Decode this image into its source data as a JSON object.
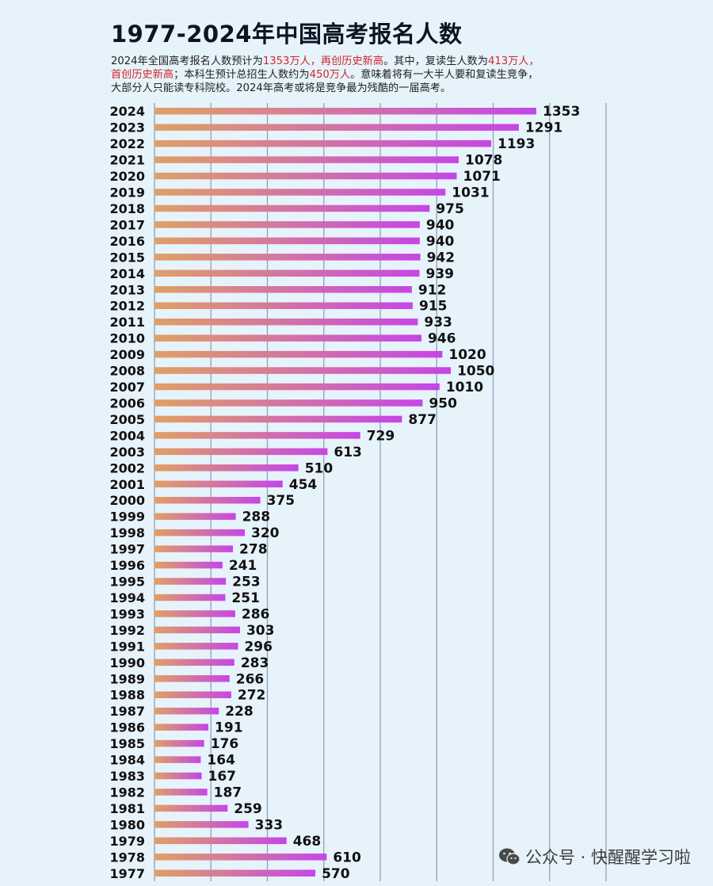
{
  "title": "1977-2024年中国高考报名人数",
  "subtitle": {
    "line1": [
      {
        "text": "2024年全国高考报名人数预计为",
        "hl": false
      },
      {
        "text": "1353万人，再创历史新高",
        "hl": true
      },
      {
        "text": "。其中，复读生人数为",
        "hl": false
      },
      {
        "text": "413万人，",
        "hl": true
      }
    ],
    "line2": [
      {
        "text": "首创历史新高",
        "hl": true
      },
      {
        "text": "；本科生预计总招生人数约为",
        "hl": false
      },
      {
        "text": "450万人",
        "hl": true
      },
      {
        "text": "。意味着将有一大半人要和复读生竞争，",
        "hl": false
      }
    ],
    "line3": [
      {
        "text": "大部分人只能读专科院校。2024年高考或将是竞争最为残酷的一届高考。",
        "hl": false
      }
    ]
  },
  "watermark": {
    "icon": "wechat-icon",
    "text": "公众号 · 快醒醒学习啦"
  },
  "colors": {
    "background": "#e6f3fb",
    "bar_start": "#e0a064",
    "bar_end": "#c646e6",
    "gridline": "#8ea2b6",
    "highlight": "#d3262b"
  },
  "chart_data": {
    "type": "bar",
    "orientation": "horizontal",
    "categories": [
      "2024",
      "2023",
      "2022",
      "2021",
      "2020",
      "2019",
      "2018",
      "2017",
      "2016",
      "2015",
      "2014",
      "2013",
      "2012",
      "2011",
      "2010",
      "2009",
      "2008",
      "2007",
      "2006",
      "2005",
      "2004",
      "2003",
      "2002",
      "2001",
      "2000",
      "1999",
      "1998",
      "1997",
      "1996",
      "1995",
      "1994",
      "1993",
      "1992",
      "1991",
      "1990",
      "1989",
      "1988",
      "1987",
      "1986",
      "1985",
      "1984",
      "1983",
      "1982",
      "1981",
      "1980",
      "1979",
      "1978",
      "1977"
    ],
    "values": [
      1353,
      1291,
      1193,
      1078,
      1071,
      1031,
      975,
      940,
      940,
      942,
      939,
      912,
      915,
      933,
      946,
      1020,
      1050,
      1010,
      950,
      877,
      729,
      613,
      510,
      454,
      375,
      288,
      320,
      278,
      241,
      253,
      251,
      286,
      303,
      296,
      283,
      266,
      272,
      228,
      191,
      176,
      164,
      167,
      187,
      259,
      333,
      468,
      610,
      570
    ],
    "title": "1977-2024年中国高考报名人数",
    "xlabel": "",
    "ylabel": "",
    "xlim": [
      0,
      1600
    ],
    "grid": true,
    "legend": "none",
    "data_labels": true
  }
}
